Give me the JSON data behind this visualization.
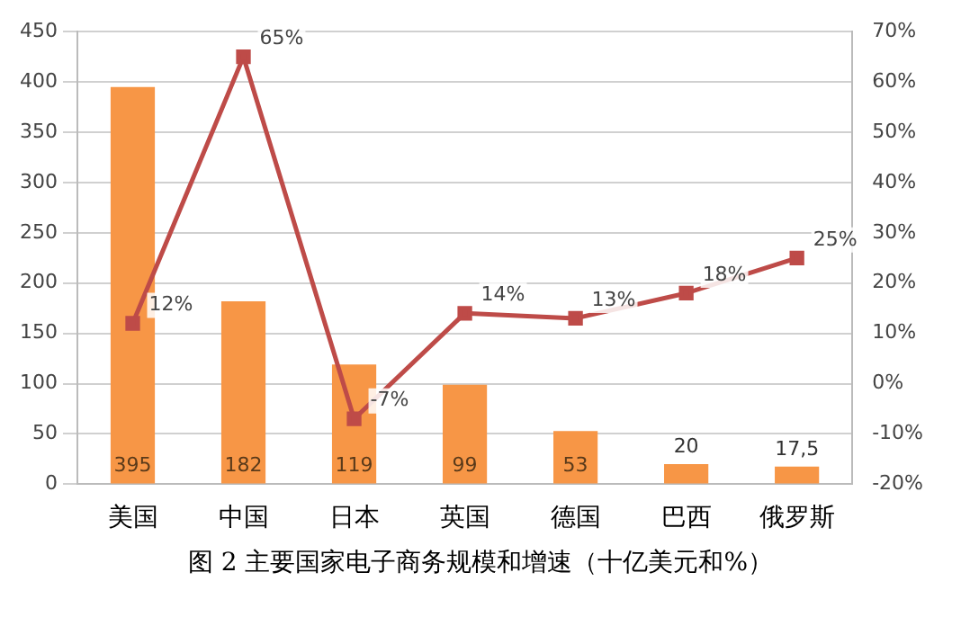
{
  "chart_data": {
    "type": "bar",
    "title": "图 2 主要国家电子商务规模和增速（十亿美元和%）",
    "categories": [
      "美国",
      "中国",
      "日本",
      "英国",
      "德国",
      "巴西",
      "俄罗斯"
    ],
    "series": [
      {
        "color": "#f79646",
        "values": [
          395,
          182,
          119,
          99,
          53,
          20,
          17.5
        ],
        "value_labels": [
          "395",
          "182",
          "119",
          "99",
          "53",
          "20",
          "17,5"
        ]
      },
      {
        "type": "line",
        "axis": "y2",
        "color": "#be4b48",
        "marker": "square",
        "values": [
          12,
          65,
          -7,
          14,
          13,
          18,
          25
        ],
        "value_labels": [
          "12%",
          "65%",
          "-7%",
          "14%",
          "13%",
          "18%",
          "25%"
        ]
      }
    ],
    "ylim": [
      0,
      450
    ],
    "yticks": [
      0,
      50,
      100,
      150,
      200,
      250,
      300,
      350,
      400,
      450
    ],
    "y2lim": [
      -20,
      70
    ],
    "y2ticks": [
      {
        "value": -20,
        "label": "-20%"
      },
      {
        "value": -10,
        "label": "-10%"
      },
      {
        "value": 0,
        "label": "0%"
      },
      {
        "value": 10,
        "label": "10%"
      },
      {
        "value": 20,
        "label": "20%"
      },
      {
        "value": 30,
        "label": "30%"
      },
      {
        "value": 40,
        "label": "40%"
      },
      {
        "value": 50,
        "label": "50%"
      },
      {
        "value": 60,
        "label": "60%"
      },
      {
        "value": 70,
        "label": "70%"
      }
    ],
    "grid": "y",
    "legend": false
  }
}
